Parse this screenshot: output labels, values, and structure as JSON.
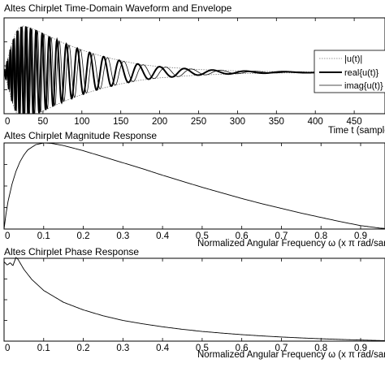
{
  "chart_data": [
    {
      "type": "line",
      "title": "Altes Chirplet Time-Domain Waveform and Envelope",
      "xlabel": "Time t (samples)",
      "xlim": [
        0,
        500
      ],
      "ylim": [
        -1,
        1
      ],
      "x_ticks": [
        "0",
        "50",
        "100",
        "150",
        "200",
        "250",
        "300",
        "350",
        "400",
        "450"
      ],
      "legend_position": "right",
      "series": [
        {
          "name": "|u(t)|",
          "style": "dotted",
          "x": [
            0,
            5,
            10,
            15,
            20,
            25,
            30,
            40,
            50,
            60,
            75,
            100,
            125,
            150,
            175,
            200,
            250,
            300,
            350,
            400,
            450,
            500
          ],
          "y": [
            0.0,
            0.3,
            0.62,
            0.85,
            0.97,
            1.0,
            0.98,
            0.92,
            0.84,
            0.76,
            0.64,
            0.48,
            0.35,
            0.25,
            0.17,
            0.12,
            0.06,
            0.03,
            0.015,
            0.008,
            0.004,
            0.002
          ]
        },
        {
          "name": "real{u(t)}",
          "style": "thick",
          "peak_times": [
            8,
            12,
            17,
            22,
            28,
            34,
            41,
            49,
            58,
            68,
            80,
            94,
            110,
            128,
            148,
            172,
            200,
            232,
            268,
            310,
            360,
            420,
            490
          ]
        },
        {
          "name": "imag{u(t)}",
          "style": "thin"
        }
      ]
    },
    {
      "type": "line",
      "title": "Altes Chirplet Magnitude Response",
      "xlabel": "Normalized Angular Frequency  ω  (x π rad/sample)",
      "xlim": [
        0,
        1
      ],
      "ylim": [
        0,
        1
      ],
      "x_ticks": [
        "0",
        "0.1",
        "0.2",
        "0.3",
        "0.4",
        "0.5",
        "0.6",
        "0.7",
        "0.8",
        "0.9"
      ],
      "series": [
        {
          "x": [
            0,
            0.005,
            0.01,
            0.02,
            0.03,
            0.04,
            0.05,
            0.06,
            0.08,
            0.1,
            0.12,
            0.15,
            0.2,
            0.25,
            0.3,
            0.35,
            0.4,
            0.45,
            0.5,
            0.55,
            0.6,
            0.65,
            0.7,
            0.75,
            0.8,
            0.85,
            0.9,
            0.95,
            1.0
          ],
          "y": [
            0.0,
            0.18,
            0.32,
            0.52,
            0.67,
            0.78,
            0.86,
            0.92,
            0.98,
            1.0,
            0.995,
            0.97,
            0.91,
            0.84,
            0.77,
            0.7,
            0.625,
            0.555,
            0.485,
            0.42,
            0.355,
            0.295,
            0.24,
            0.185,
            0.135,
            0.085,
            0.04,
            0.01,
            0.0
          ]
        }
      ]
    },
    {
      "type": "line",
      "title": "Altes Chirplet Phase Response",
      "xlabel": "Normalized Angular Frequency  ω  (x π rad/sample)",
      "xlim": [
        0,
        1
      ],
      "ylim": [
        0,
        1
      ],
      "x_ticks": [
        "0",
        "0.1",
        "0.2",
        "0.3",
        "0.4",
        "0.5",
        "0.6",
        "0.7",
        "0.8",
        "0.9"
      ],
      "series": [
        {
          "x": [
            0,
            0.008,
            0.016,
            0.022,
            0.03,
            0.035,
            0.05,
            0.07,
            0.1,
            0.15,
            0.2,
            0.25,
            0.3,
            0.35,
            0.4,
            0.45,
            0.5,
            0.55,
            0.6,
            0.65,
            0.7,
            0.75,
            0.8,
            0.85,
            0.9,
            0.95,
            1.0
          ],
          "y": [
            0.94,
            0.9,
            0.93,
            0.89,
            0.99,
            0.97,
            0.85,
            0.73,
            0.6,
            0.46,
            0.37,
            0.3,
            0.245,
            0.205,
            0.17,
            0.14,
            0.115,
            0.095,
            0.077,
            0.062,
            0.049,
            0.038,
            0.028,
            0.02,
            0.013,
            0.007,
            0.003
          ]
        }
      ]
    }
  ]
}
